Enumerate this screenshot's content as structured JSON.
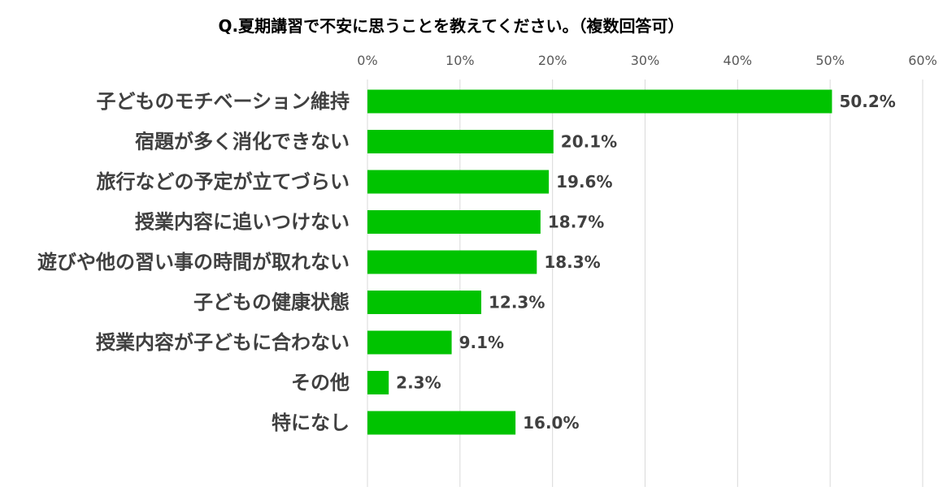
{
  "chart_data": {
    "type": "bar",
    "orientation": "horizontal",
    "title": "Q.夏期講習で不安に思うことを教えてください。（複数回答可）",
    "categories": [
      "子どものモチベーション維持",
      "宿題が多く消化できない",
      "旅行などの予定が立てづらい",
      "授業内容に追いつけない",
      "遊びや他の習い事の時間が取れない",
      "子どもの健康状態",
      "授業内容が子どもに合わない",
      "その他",
      "特になし"
    ],
    "values": [
      50.2,
      20.1,
      19.6,
      18.7,
      18.3,
      12.3,
      9.1,
      2.3,
      16.0
    ],
    "value_labels": [
      "50.2%",
      "20.1%",
      "19.6%",
      "18.7%",
      "18.3%",
      "12.3%",
      "9.1%",
      "2.3%",
      "16.0%"
    ],
    "xlim": [
      0,
      60
    ],
    "x_ticks": [
      0,
      10,
      20,
      30,
      40,
      50,
      60
    ],
    "x_tick_labels": [
      "0%",
      "10%",
      "20%",
      "30%",
      "40%",
      "50%",
      "60%"
    ],
    "xaxis_position": "top",
    "grid": true,
    "legend": "none",
    "colors": {
      "bar": "#00c300",
      "gridline": "#d9d9d9",
      "category_text": "#404040",
      "tick_text": "#595959"
    }
  }
}
